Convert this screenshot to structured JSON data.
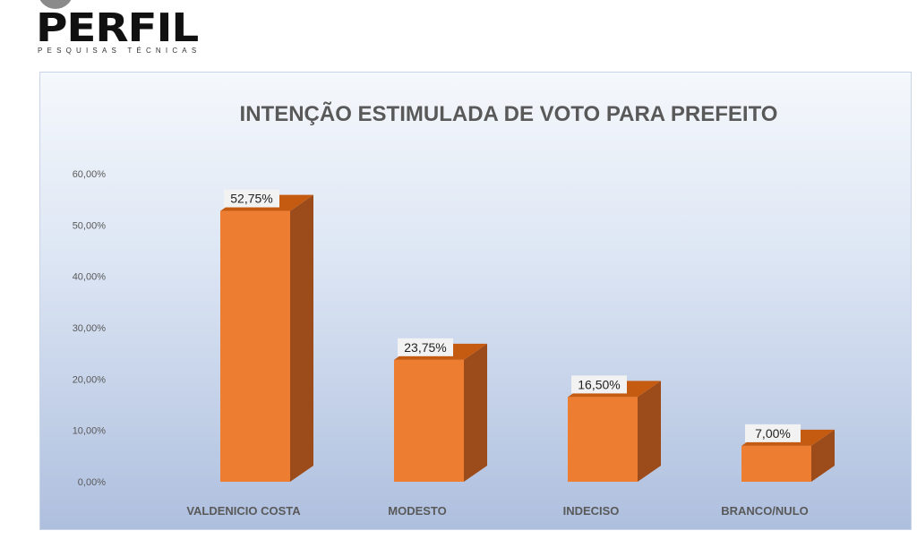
{
  "logo": {
    "name": "PERFIL",
    "tagline": "PESQUISAS TÉCNICAS"
  },
  "chart_data": {
    "type": "bar",
    "title": "INTENÇÃO ESTIMULADA DE VOTO PARA PREFEITO",
    "categories": [
      "VALDENICIO COSTA",
      "MODESTO",
      "INDECISO",
      "BRANCO/NULO"
    ],
    "values": [
      52.75,
      23.75,
      16.5,
      7.0
    ],
    "data_labels": [
      "52,75%",
      "23,75%",
      "16,50%",
      "7,00%"
    ],
    "y_ticks": [
      0,
      10,
      20,
      30,
      40,
      50,
      60
    ],
    "y_tick_labels": [
      "0,00%",
      "10,00%",
      "20,00%",
      "30,00%",
      "40,00%",
      "50,00%",
      "60,00%"
    ],
    "ylim": [
      0,
      60
    ],
    "xlabel": "",
    "ylabel": "",
    "grid": false,
    "style": "3d-column",
    "colors": {
      "bar_front": "#ed7d31",
      "bar_side": "#9c4b1a",
      "bar_top": "#c55a11",
      "label_bg": "#f2f2f2"
    }
  }
}
